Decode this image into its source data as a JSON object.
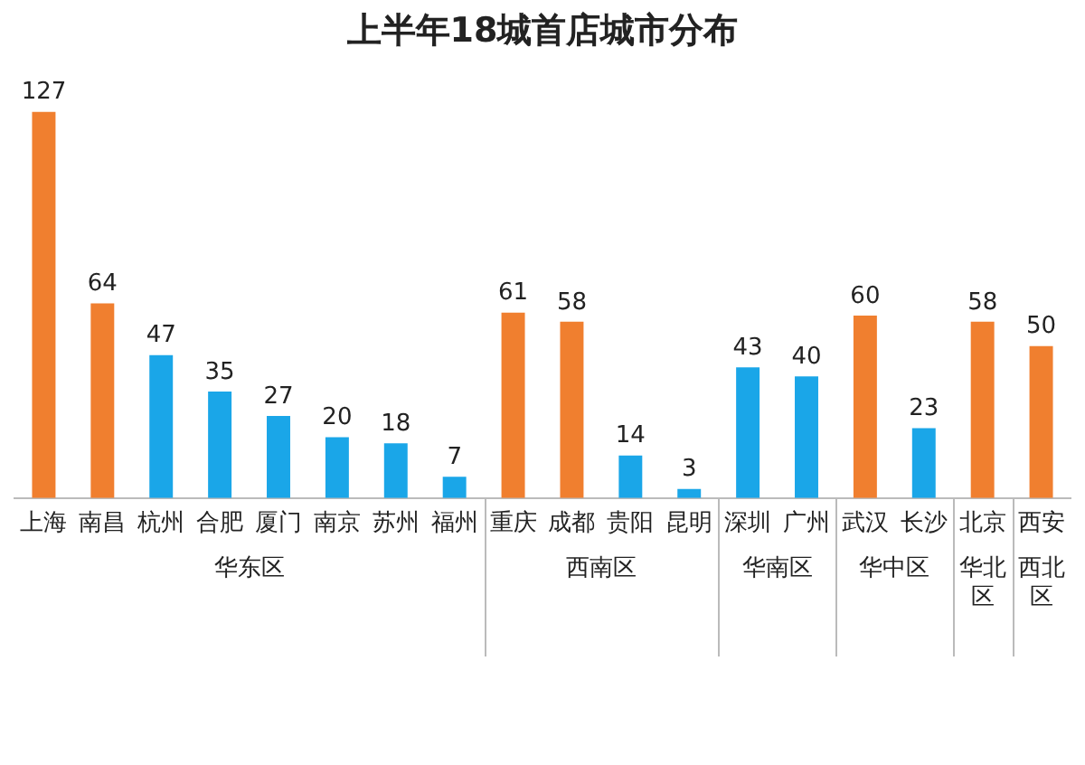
{
  "chart_data": {
    "type": "bar",
    "title": "上半年18城首店城市分布",
    "categories": [
      "上海",
      "南昌",
      "杭州",
      "合肥",
      "厦门",
      "南京",
      "苏州",
      "福州",
      "重庆",
      "成都",
      "贵阳",
      "昆明",
      "深圳",
      "广州",
      "武汉",
      "长沙",
      "北京",
      "西安"
    ],
    "values": [
      127,
      64,
      47,
      35,
      27,
      20,
      18,
      7,
      61,
      58,
      14,
      3,
      43,
      40,
      60,
      23,
      58,
      50
    ],
    "colors": [
      "#f07f2f",
      "#f07f2f",
      "#1aa6e8",
      "#1aa6e8",
      "#1aa6e8",
      "#1aa6e8",
      "#1aa6e8",
      "#1aa6e8",
      "#f07f2f",
      "#f07f2f",
      "#1aa6e8",
      "#1aa6e8",
      "#1aa6e8",
      "#1aa6e8",
      "#f07f2f",
      "#1aa6e8",
      "#f07f2f",
      "#f07f2f"
    ],
    "data_labels": true,
    "grid": false,
    "legend": false,
    "annotations": [
      "华东区",
      "西南区",
      "华南区",
      "华中区",
      "华北区",
      "西北区"
    ]
  }
}
